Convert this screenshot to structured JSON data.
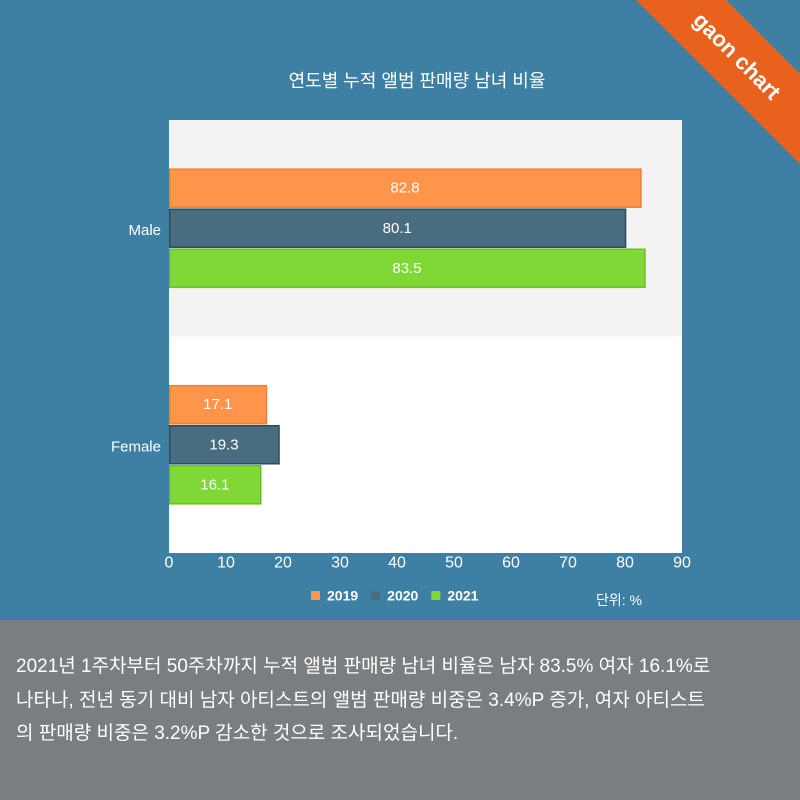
{
  "brand": {
    "label": "gaon chart",
    "color": "#E8621D"
  },
  "colors": {
    "background": "#3E80A4",
    "footer_background": "#7A7E81",
    "plot_background": "#FFFFFF",
    "band_alt": "#F3F3F3",
    "text": "#FFFFFF"
  },
  "chart_data": {
    "type": "bar",
    "orientation": "horizontal",
    "title": "연도별 누적 앨범 판매량 남녀 비율",
    "categories": [
      "Male",
      "Female"
    ],
    "series": [
      {
        "name": "2019",
        "values": [
          82.8,
          17.1
        ],
        "color": "#FF944A",
        "border": "#F07F35"
      },
      {
        "name": "2020",
        "values": [
          80.1,
          19.3
        ],
        "color": "#486C80",
        "border": "#2E4A5B"
      },
      {
        "name": "2021",
        "values": [
          83.5,
          16.1
        ],
        "color": "#7FD836",
        "border": "#69BF25"
      }
    ],
    "xlim": [
      0,
      90
    ],
    "xticks": [
      0,
      10,
      20,
      30,
      40,
      50,
      60,
      70,
      80,
      90
    ],
    "unit_label": "단위: %",
    "legend_position": "bottom",
    "grid": false
  },
  "description": {
    "lines": [
      "2021년 1주차부터 50주차까지 누적 앨범 판매량 남녀 비율은 남자 83.5% 여자 16.1%로",
      "나타나, 전년 동기 대비 남자 아티스트의 앨범 판매량 비중은 3.4%P 증가, 여자 아티스트",
      "의 판매량 비중은 3.2%P 감소한 것으로 조사되었습니다."
    ]
  }
}
